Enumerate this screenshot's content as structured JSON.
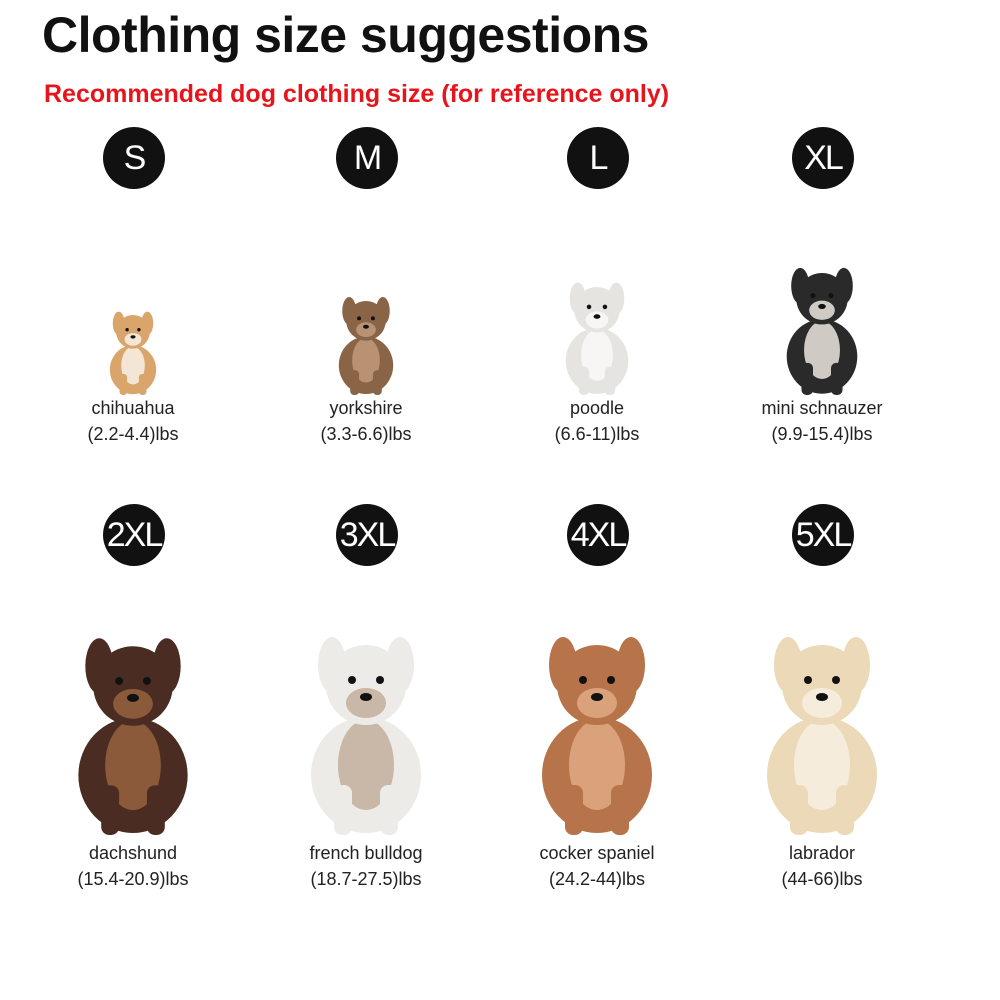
{
  "title": "Clothing size suggestions",
  "subtitle": "Recommended dog clothing size (for reference only)",
  "sizes": [
    {
      "size": "S",
      "breed": "chihuahua",
      "weight": "(2.2-4.4)lbs",
      "colors": {
        "body": "#d9a56b",
        "accent": "#f3e6d6"
      }
    },
    {
      "size": "M",
      "breed": "yorkshire",
      "weight": "(3.3-6.6)lbs",
      "colors": {
        "body": "#8a6446",
        "accent": "#b89272"
      }
    },
    {
      "size": "L",
      "breed": "poodle",
      "weight": "(6.6-11)lbs",
      "colors": {
        "body": "#e6e4e1",
        "accent": "#f7f6f4"
      }
    },
    {
      "size": "XL",
      "breed": "mini schnauzer",
      "weight": "(9.9-15.4)lbs",
      "colors": {
        "body": "#2a2a2a",
        "accent": "#cfcac4"
      }
    },
    {
      "size": "2XL",
      "breed": "dachshund",
      "weight": "(15.4-20.9)lbs",
      "colors": {
        "body": "#4a2c22",
        "accent": "#8a5a3a"
      }
    },
    {
      "size": "3XL",
      "breed": "french bulldog",
      "weight": "(18.7-27.5)lbs",
      "colors": {
        "body": "#ecebe8",
        "accent": "#c9b7a8"
      }
    },
    {
      "size": "4XL",
      "breed": "cocker spaniel",
      "weight": "(24.2-44)lbs",
      "colors": {
        "body": "#b7744a",
        "accent": "#d9a27a"
      }
    },
    {
      "size": "5XL",
      "breed": "labrador",
      "weight": "(44-66)lbs",
      "colors": {
        "body": "#ecd9b8",
        "accent": "#f6ecdc"
      }
    }
  ]
}
